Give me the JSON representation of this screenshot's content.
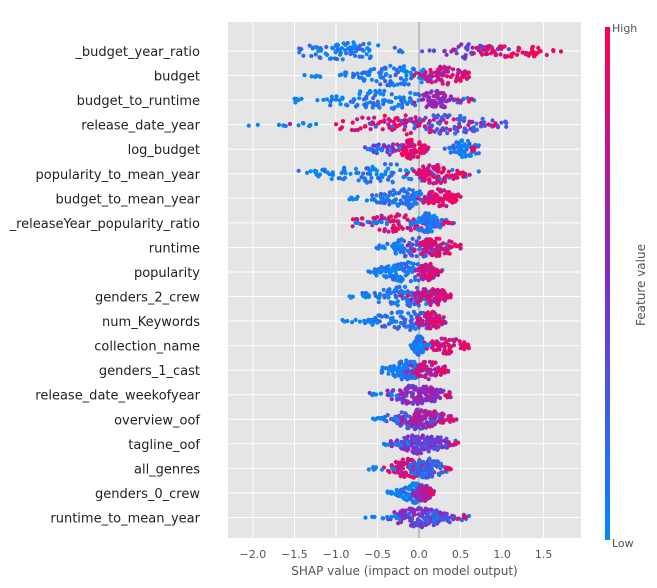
{
  "chart_data": {
    "type": "scatter",
    "subtype": "shap-beeswarm",
    "xlabel": "SHAP value (impact on model output)",
    "xlim": [
      -2.3,
      1.95
    ],
    "xticks": [
      -2.0,
      -1.5,
      -1.0,
      -0.5,
      0.0,
      0.5,
      1.0,
      1.5
    ],
    "xtick_labels": [
      "−2.0",
      "−1.5",
      "−1.0",
      "−0.5",
      "0.0",
      "0.5",
      "1.0",
      "1.5"
    ],
    "grid": true,
    "colorbar": {
      "label": "Feature value",
      "high_label": "High",
      "low_label": "Low",
      "low_color": "#008bfb",
      "high_color": "#ff0051"
    },
    "features": [
      {
        "name": "_budget_year_ratio",
        "min": -1.7,
        "max": 1.72,
        "clusters": [
          [
            -0.9,
            0.3,
            1.0,
            0.1
          ],
          [
            0.55,
            0.2,
            0.6,
            0.45
          ],
          [
            1.0,
            0.18,
            0.5,
            0.9
          ],
          [
            1.4,
            0.15,
            0.25,
            0.95
          ]
        ]
      },
      {
        "name": "budget",
        "min": -1.6,
        "max": 0.6,
        "clusters": [
          [
            -0.3,
            0.3,
            1.0,
            0.1
          ],
          [
            0.3,
            0.15,
            0.7,
            0.8
          ]
        ]
      },
      {
        "name": "budget_to_runtime",
        "min": -1.55,
        "max": 0.72,
        "clusters": [
          [
            -0.5,
            0.4,
            1.0,
            0.1
          ],
          [
            0.2,
            0.12,
            0.7,
            0.6
          ]
        ]
      },
      {
        "name": "release_date_year",
        "min": -2.08,
        "max": 1.05,
        "clusters": [
          [
            -0.2,
            0.45,
            0.9,
            0.85
          ],
          [
            0.3,
            0.35,
            0.8,
            0.3
          ]
        ]
      },
      {
        "name": "log_budget",
        "min": -0.65,
        "max": 0.72,
        "clusters": [
          [
            -0.1,
            0.1,
            0.9,
            0.9
          ],
          [
            0.55,
            0.1,
            0.7,
            0.1
          ],
          [
            -0.4,
            0.15,
            0.3,
            0.5
          ]
        ]
      },
      {
        "name": "popularity_to_mean_year",
        "min": -1.45,
        "max": 0.72,
        "clusters": [
          [
            -0.4,
            0.45,
            0.9,
            0.1
          ],
          [
            0.2,
            0.15,
            0.8,
            0.85
          ]
        ]
      },
      {
        "name": "budget_to_mean_year",
        "min": -0.85,
        "max": 0.5,
        "clusters": [
          [
            -0.15,
            0.2,
            1.0,
            0.15
          ],
          [
            0.25,
            0.12,
            0.7,
            0.85
          ]
        ]
      },
      {
        "name": "_releaseYear_popularity_ratio",
        "min": -0.8,
        "max": 0.42,
        "clusters": [
          [
            -0.3,
            0.25,
            0.7,
            0.85
          ],
          [
            0.1,
            0.1,
            0.8,
            0.1
          ]
        ]
      },
      {
        "name": "runtime",
        "min": -0.55,
        "max": 0.5,
        "clusters": [
          [
            -0.05,
            0.2,
            0.9,
            0.2
          ],
          [
            0.2,
            0.15,
            0.7,
            0.85
          ]
        ]
      },
      {
        "name": "popularity",
        "min": -0.65,
        "max": 0.28,
        "clusters": [
          [
            -0.15,
            0.2,
            0.9,
            0.1
          ],
          [
            0.1,
            0.06,
            0.7,
            0.8
          ]
        ]
      },
      {
        "name": "genders_2_crew",
        "min": -0.92,
        "max": 0.38,
        "clusters": [
          [
            -0.15,
            0.25,
            0.9,
            0.15
          ],
          [
            0.15,
            0.12,
            0.7,
            0.8
          ]
        ]
      },
      {
        "name": "num_Keywords",
        "min": -0.95,
        "max": 0.32,
        "clusters": [
          [
            -0.15,
            0.25,
            0.9,
            0.15
          ],
          [
            0.15,
            0.1,
            0.7,
            0.8
          ]
        ]
      },
      {
        "name": "collection_name",
        "min": -0.12,
        "max": 0.6,
        "clusters": [
          [
            0.0,
            0.04,
            1.0,
            0.1
          ],
          [
            0.35,
            0.12,
            0.6,
            0.85
          ]
        ]
      },
      {
        "name": "genders_1_cast",
        "min": -0.45,
        "max": 0.35,
        "clusters": [
          [
            -0.15,
            0.12,
            0.9,
            0.1
          ],
          [
            0.1,
            0.12,
            0.7,
            0.75
          ]
        ]
      },
      {
        "name": "release_date_weekofyear",
        "min": -0.6,
        "max": 0.38,
        "clusters": [
          [
            -0.05,
            0.18,
            0.9,
            0.5
          ],
          [
            0.1,
            0.12,
            0.6,
            0.6
          ]
        ]
      },
      {
        "name": "overview_oof",
        "min": -0.62,
        "max": 0.45,
        "clusters": [
          [
            -0.05,
            0.18,
            0.9,
            0.3
          ],
          [
            0.1,
            0.15,
            0.7,
            0.7
          ]
        ]
      },
      {
        "name": "tagline_oof",
        "min": -0.45,
        "max": 0.5,
        "clusters": [
          [
            0.0,
            0.15,
            1.0,
            0.5
          ],
          [
            0.15,
            0.15,
            0.5,
            0.4
          ]
        ]
      },
      {
        "name": "all_genres",
        "min": -0.65,
        "max": 0.45,
        "clusters": [
          [
            -0.1,
            0.15,
            0.9,
            0.85
          ],
          [
            0.1,
            0.12,
            0.8,
            0.2
          ]
        ]
      },
      {
        "name": "genders_0_crew",
        "min": -0.38,
        "max": 0.18,
        "clusters": [
          [
            -0.05,
            0.1,
            1.0,
            0.1
          ],
          [
            0.05,
            0.06,
            0.6,
            0.7
          ]
        ]
      },
      {
        "name": "runtime_to_mean_year",
        "min": -0.68,
        "max": 0.6,
        "clusters": [
          [
            0.0,
            0.2,
            1.0,
            0.5
          ],
          [
            0.2,
            0.2,
            0.3,
            0.2
          ]
        ]
      }
    ]
  }
}
